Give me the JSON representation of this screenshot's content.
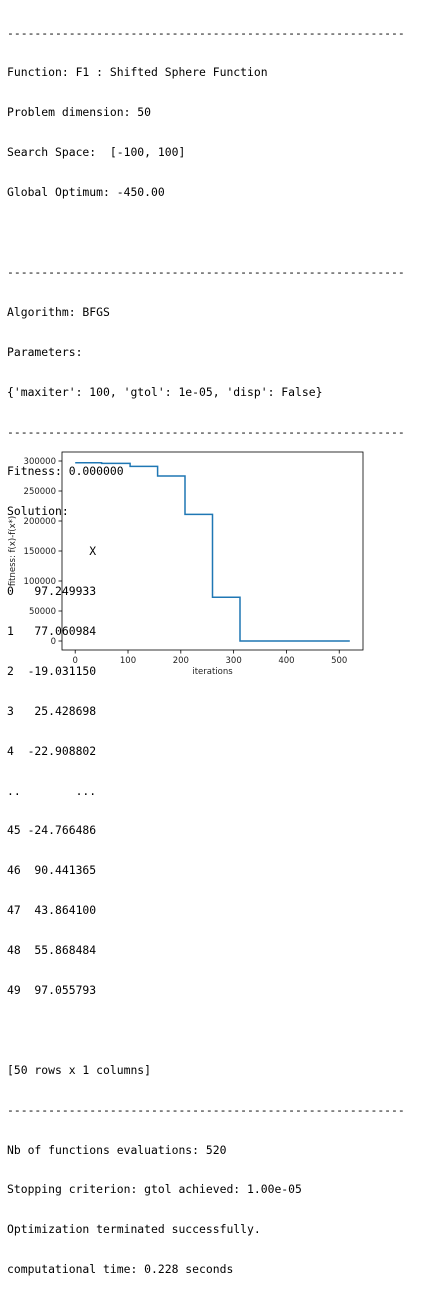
{
  "separator": "----------------------------------------------------------",
  "problem": {
    "function": "Function: F1 : Shifted Sphere Function",
    "dimension": "Problem dimension: 50",
    "search_space": "Search Space:  [-100, 100]",
    "optimum": "Global Optimum: -450.00"
  },
  "algorithm": {
    "name": "Algorithm: BFGS",
    "params_label": "Parameters:",
    "params": "{'maxiter': 100, 'gtol': 1e-05, 'disp': False}"
  },
  "result": {
    "fitness": "Fitness: 0.000000",
    "solution_label": "Solution:",
    "column_header": "            X",
    "rows": [
      "0   97.249933",
      "1   77.060984",
      "2  -19.031150",
      "3   25.428698",
      "4  -22.908802",
      "..        ...",
      "45 -24.766486",
      "46  90.441365",
      "47  43.864100",
      "48  55.868484",
      "49  97.055793"
    ],
    "shape": "[50 rows x 1 columns]"
  },
  "summary": {
    "evaluations": "Nb of functions evaluations: 520",
    "criterion": "Stopping criterion: gtol achieved: 1.00e-05",
    "message": "Optimization terminated successfully.",
    "time": "computational time: 0.228 seconds"
  },
  "chart_data": {
    "type": "line",
    "xlabel": "iterations",
    "ylabel": "fitness: f(x)-f(x*)",
    "xlim": [
      -25,
      545
    ],
    "ylim": [
      -15000,
      315000
    ],
    "xticks": [
      0,
      100,
      200,
      300,
      400,
      500
    ],
    "yticks": [
      0,
      50000,
      100000,
      150000,
      200000,
      250000,
      300000
    ],
    "series": [
      {
        "color": "#1f77b4",
        "step_x": [
          0,
          50,
          50,
          104,
          104,
          156,
          156,
          208,
          208,
          260,
          260,
          312,
          312,
          520
        ],
        "step_y": [
          297000,
          297000,
          296000,
          296000,
          291000,
          291000,
          275000,
          275000,
          211000,
          211000,
          73000,
          73000,
          0,
          0
        ]
      }
    ]
  }
}
